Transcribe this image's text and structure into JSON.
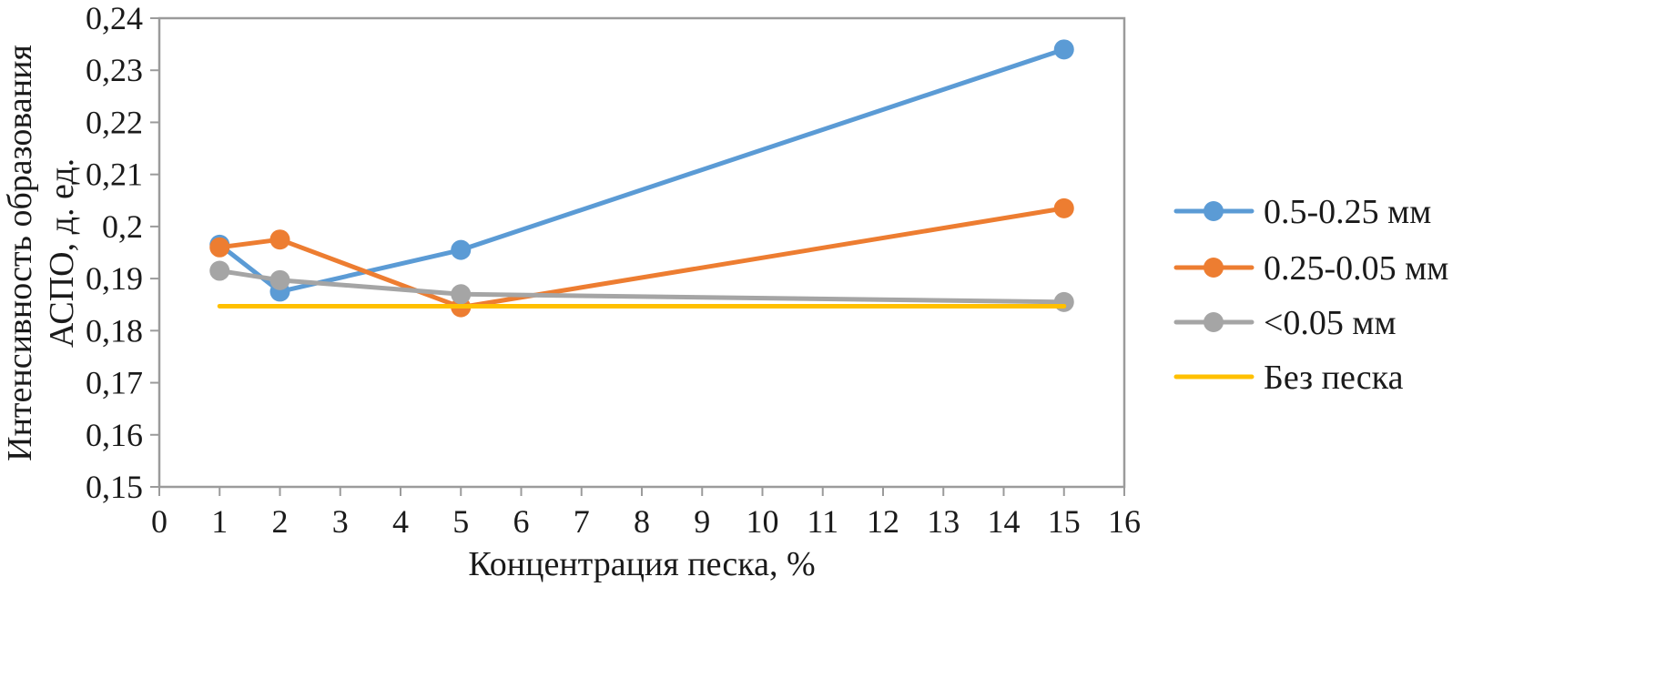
{
  "chart_data": {
    "type": "line",
    "title": "",
    "xlabel": "Концентрация песка, %",
    "ylabel_line1": "Интенсивность образования",
    "ylabel_line2": "АСПО, д. ед.",
    "xlim": [
      0,
      16
    ],
    "ylim": [
      0.15,
      0.24
    ],
    "grid": false,
    "legend_position": "right",
    "x_ticks": [
      0,
      1,
      2,
      3,
      4,
      5,
      6,
      7,
      8,
      9,
      10,
      11,
      12,
      13,
      14,
      15,
      16
    ],
    "x_tick_labels": [
      "0",
      "1",
      "2",
      "3",
      "4",
      "5",
      "6",
      "7",
      "8",
      "9",
      "10",
      "11",
      "12",
      "13",
      "14",
      "15",
      "16"
    ],
    "y_ticks": [
      0.15,
      0.16,
      0.17,
      0.18,
      0.19,
      0.2,
      0.21,
      0.22,
      0.23,
      0.24
    ],
    "y_tick_labels": [
      "0,15",
      "0,16",
      "0,17",
      "0,18",
      "0,19",
      "0,2",
      "0,21",
      "0,22",
      "0,23",
      "0,24"
    ],
    "axis_color": "#9b9b9b",
    "text_color": "#1a1a1a",
    "series": [
      {
        "name": "0.5-0.25 мм",
        "color": "#5B9BD5",
        "marker": true,
        "x": [
          1,
          2,
          5,
          15
        ],
        "y": [
          0.1965,
          0.1875,
          0.1955,
          0.234
        ]
      },
      {
        "name": "0.25-0.05 мм",
        "color": "#ED7D31",
        "marker": true,
        "x": [
          1,
          2,
          5,
          15
        ],
        "y": [
          0.196,
          0.1975,
          0.1845,
          0.2035
        ]
      },
      {
        "name": "<0.05 мм",
        "color": "#A5A5A5",
        "marker": true,
        "x": [
          1,
          2,
          5,
          15
        ],
        "y": [
          0.1915,
          0.1897,
          0.187,
          0.1855
        ]
      },
      {
        "name": "Без песка",
        "color": "#FFC000",
        "marker": false,
        "x": [
          1,
          15
        ],
        "y": [
          0.1847,
          0.1847
        ]
      }
    ]
  }
}
